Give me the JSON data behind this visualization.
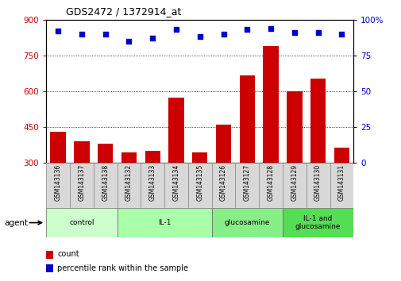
{
  "title": "GDS2472 / 1372914_at",
  "samples": [
    "GSM143136",
    "GSM143137",
    "GSM143138",
    "GSM143132",
    "GSM143133",
    "GSM143134",
    "GSM143135",
    "GSM143126",
    "GSM143127",
    "GSM143128",
    "GSM143129",
    "GSM143130",
    "GSM143131"
  ],
  "counts": [
    430,
    390,
    380,
    345,
    350,
    575,
    345,
    460,
    665,
    790,
    600,
    655,
    365
  ],
  "percentiles": [
    92,
    90,
    90,
    85,
    87,
    93,
    88,
    90,
    93,
    94,
    91,
    91,
    90
  ],
  "groups": [
    {
      "label": "control",
      "start": 0,
      "end": 3,
      "color": "#ccffcc"
    },
    {
      "label": "IL-1",
      "start": 3,
      "end": 7,
      "color": "#aaffaa"
    },
    {
      "label": "glucosamine",
      "start": 7,
      "end": 10,
      "color": "#88ee88"
    },
    {
      "label": "IL-1 and\nglucosamine",
      "start": 10,
      "end": 13,
      "color": "#55dd55"
    }
  ],
  "bar_color": "#cc0000",
  "dot_color": "#0000cc",
  "ylim_left": [
    300,
    900
  ],
  "ylim_right": [
    0,
    100
  ],
  "yticks_left": [
    300,
    450,
    600,
    750,
    900
  ],
  "yticks_right": [
    0,
    25,
    50,
    75,
    100
  ],
  "agent_label": "agent"
}
